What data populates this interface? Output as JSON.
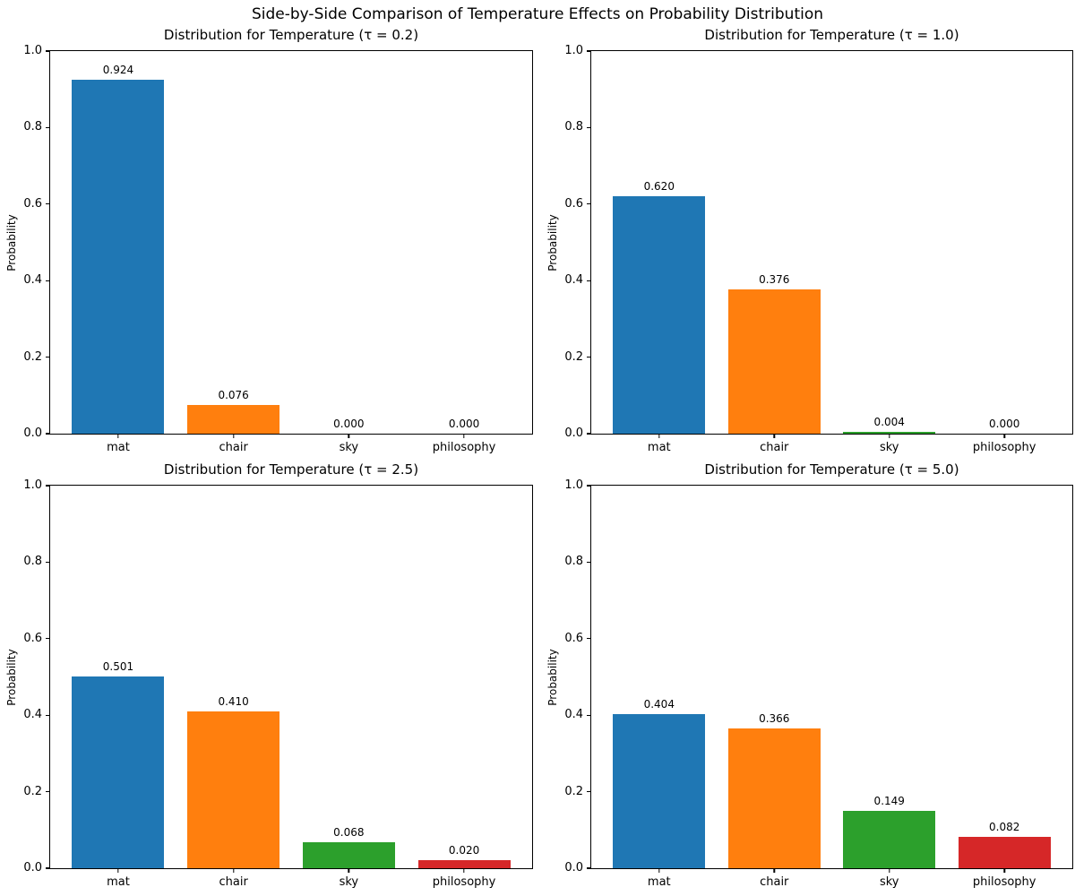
{
  "figure": {
    "suptitle": "Side-by-Side Comparison of Temperature Effects on Probability Distribution",
    "background_color": "#ffffff",
    "text_color": "#000000",
    "axis_color": "#000000"
  },
  "chart_data": [
    {
      "type": "bar",
      "title": "Distribution for Temperature (τ = 0.2)",
      "xlabel": "",
      "ylabel": "Probability",
      "ylim": [
        0.0,
        1.0
      ],
      "yticks": [
        0.0,
        0.2,
        0.4,
        0.6,
        0.8,
        1.0
      ],
      "grid": false,
      "categories": [
        "mat",
        "chair",
        "sky",
        "philosophy"
      ],
      "values": [
        0.924,
        0.076,
        0.0,
        0.0
      ],
      "value_labels": [
        "0.924",
        "0.076",
        "0.000",
        "0.000"
      ],
      "bar_colors": [
        "#1f77b4",
        "#ff7f0e",
        "#2ca02c",
        "#d62728"
      ]
    },
    {
      "type": "bar",
      "title": "Distribution for Temperature (τ = 1.0)",
      "xlabel": "",
      "ylabel": "Probability",
      "ylim": [
        0.0,
        1.0
      ],
      "yticks": [
        0.0,
        0.2,
        0.4,
        0.6,
        0.8,
        1.0
      ],
      "grid": false,
      "categories": [
        "mat",
        "chair",
        "sky",
        "philosophy"
      ],
      "values": [
        0.62,
        0.376,
        0.004,
        0.0
      ],
      "value_labels": [
        "0.620",
        "0.376",
        "0.004",
        "0.000"
      ],
      "bar_colors": [
        "#1f77b4",
        "#ff7f0e",
        "#2ca02c",
        "#d62728"
      ]
    },
    {
      "type": "bar",
      "title": "Distribution for Temperature (τ = 2.5)",
      "xlabel": "",
      "ylabel": "Probability",
      "ylim": [
        0.0,
        1.0
      ],
      "yticks": [
        0.0,
        0.2,
        0.4,
        0.6,
        0.8,
        1.0
      ],
      "grid": false,
      "categories": [
        "mat",
        "chair",
        "sky",
        "philosophy"
      ],
      "values": [
        0.501,
        0.41,
        0.068,
        0.02
      ],
      "value_labels": [
        "0.501",
        "0.410",
        "0.068",
        "0.020"
      ],
      "bar_colors": [
        "#1f77b4",
        "#ff7f0e",
        "#2ca02c",
        "#d62728"
      ]
    },
    {
      "type": "bar",
      "title": "Distribution for Temperature (τ = 5.0)",
      "xlabel": "",
      "ylabel": "Probability",
      "ylim": [
        0.0,
        1.0
      ],
      "yticks": [
        0.0,
        0.2,
        0.4,
        0.6,
        0.8,
        1.0
      ],
      "grid": false,
      "categories": [
        "mat",
        "chair",
        "sky",
        "philosophy"
      ],
      "values": [
        0.404,
        0.366,
        0.149,
        0.082
      ],
      "value_labels": [
        "0.404",
        "0.366",
        "0.149",
        "0.082"
      ],
      "bar_colors": [
        "#1f77b4",
        "#ff7f0e",
        "#2ca02c",
        "#d62728"
      ]
    }
  ]
}
